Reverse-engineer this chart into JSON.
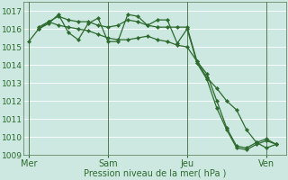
{
  "background_color": "#cce8e0",
  "grid_color": "#ffffff",
  "line_color": "#2d6a2d",
  "marker_color": "#2d6a2d",
  "xlabel": "Pression niveau de la mer( hPa )",
  "ylim": [
    1009,
    1017.5
  ],
  "yticks": [
    1009,
    1010,
    1011,
    1012,
    1013,
    1014,
    1015,
    1016,
    1017
  ],
  "day_labels": [
    "Mer",
    "Sam",
    "Jeu",
    "Ven"
  ],
  "day_positions": [
    0,
    8,
    16,
    24
  ],
  "xlim": [
    -0.5,
    26
  ],
  "line1_x": [
    0,
    1,
    2,
    3,
    4,
    5,
    6,
    7,
    8,
    9,
    10,
    11,
    12,
    13,
    14,
    15,
    16,
    17,
    18,
    19,
    20,
    21,
    22,
    23,
    24,
    25
  ],
  "line1_y": [
    1015.3,
    1016.0,
    1016.4,
    1016.2,
    1016.1,
    1016.0,
    1015.9,
    1015.7,
    1015.5,
    1015.4,
    1015.4,
    1015.5,
    1015.6,
    1015.4,
    1015.3,
    1015.1,
    1015.0,
    1014.2,
    1013.3,
    1012.7,
    1012.0,
    1011.5,
    1010.4,
    1009.7,
    1009.4,
    1009.6
  ],
  "line2_x": [
    1,
    2,
    3,
    4,
    5,
    6,
    7,
    8,
    9,
    10,
    11,
    12,
    13,
    14,
    15,
    16,
    17,
    18,
    19,
    20,
    21,
    22,
    23,
    24,
    25
  ],
  "line2_y": [
    1016.1,
    1016.4,
    1016.7,
    1016.5,
    1016.4,
    1016.4,
    1016.2,
    1016.1,
    1016.2,
    1016.5,
    1016.4,
    1016.2,
    1016.1,
    1016.1,
    1016.1,
    1016.1,
    1014.2,
    1013.5,
    1012.0,
    1010.5,
    1009.5,
    1009.4,
    1009.7,
    1009.9,
    1009.6
  ],
  "line3_x": [
    1,
    2,
    3,
    4,
    5,
    6,
    7,
    8,
    9,
    10,
    11,
    12,
    13,
    14,
    15,
    16,
    17,
    18,
    19,
    20,
    21,
    22,
    23,
    24,
    25
  ],
  "line3_y": [
    1016.0,
    1016.3,
    1016.8,
    1015.8,
    1015.4,
    1016.3,
    1016.6,
    1015.3,
    1015.3,
    1016.8,
    1016.7,
    1016.2,
    1016.5,
    1016.5,
    1015.2,
    1016.0,
    1014.1,
    1013.2,
    1011.6,
    1010.4,
    1009.4,
    1009.3,
    1009.6,
    1009.8,
    1009.6
  ]
}
